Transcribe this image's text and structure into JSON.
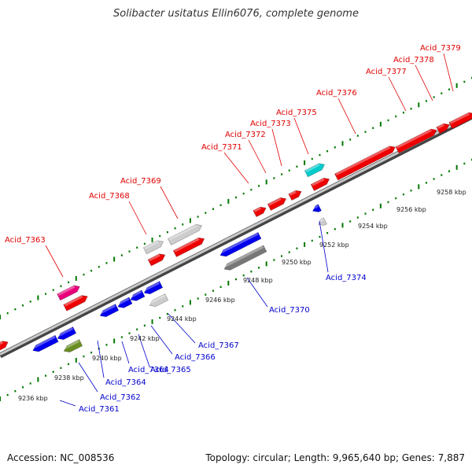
{
  "title": "Solibacter usitatus Ellin6076, complete genome",
  "footer": {
    "accession": "Accession: NC_008536",
    "summary": "Topology: circular; Length: 9,965,640 bp; Genes: 7,887"
  },
  "colors": {
    "forward_label": "#e00000",
    "reverse_label": "#0000cc",
    "backbone": "#999999",
    "tick": "#007700"
  },
  "scale": {
    "unit": "kbp",
    "labels": [
      "9236 kbp",
      "9238 kbp",
      "9240 kbp",
      "9242 kbp",
      "9244 kbp",
      "9246 kbp",
      "9248 kbp",
      "9250 kbp",
      "9252 kbp",
      "9254 kbp",
      "9256 kbp",
      "9258 kbp"
    ]
  },
  "genes_forward": [
    {
      "name": "Acid_7363",
      "color": "#e8007a"
    },
    {
      "name": "Acid_7368",
      "color": "#cccccc"
    },
    {
      "name": "Acid_7369",
      "color": "#cccccc"
    },
    {
      "name": "Acid_7371",
      "color": "#ee0000"
    },
    {
      "name": "Acid_7372",
      "color": "#ee0000"
    },
    {
      "name": "Acid_7373",
      "color": "#ee0000"
    },
    {
      "name": "Acid_7375",
      "color": "#00cccc"
    },
    {
      "name": "Acid_7376",
      "color": "#ee0000"
    },
    {
      "name": "Acid_7377",
      "color": "#ee0000"
    },
    {
      "name": "Acid_7378",
      "color": "#ee0000"
    },
    {
      "name": "Acid_7379",
      "color": "#ee0000"
    }
  ],
  "genes_reverse": [
    {
      "name": "Acid_7361",
      "color": "#0000ee"
    },
    {
      "name": "Acid_7362",
      "color": "#6b8e23"
    },
    {
      "name": "Acid_7364",
      "color": "#0000ee"
    },
    {
      "name": "Acid_7365",
      "color": "#0000ee"
    },
    {
      "name": "Acid_7366",
      "color": "#0000ee"
    },
    {
      "name": "Acid_7367",
      "color": "#cccccc"
    },
    {
      "name": "Acid_7370",
      "color": "#777777"
    },
    {
      "name": "Acid_7374",
      "color": "#0000ee"
    }
  ]
}
